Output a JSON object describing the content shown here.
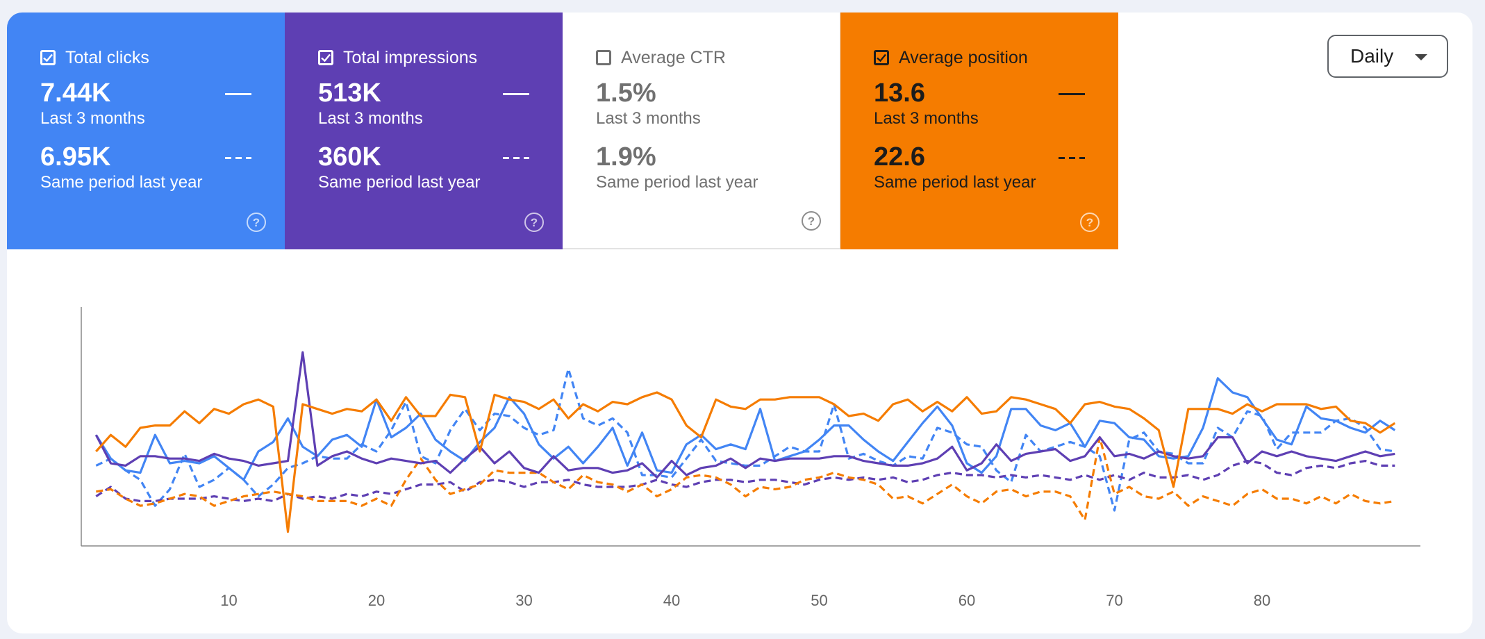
{
  "cards": [
    {
      "key": "clicks",
      "title": "Total clicks",
      "checked": true,
      "value": "7.44K",
      "period": "Last 3 months",
      "compare_value": "6.95K",
      "compare_period": "Same period last year"
    },
    {
      "key": "impressions",
      "title": "Total impressions",
      "checked": true,
      "value": "513K",
      "period": "Last 3 months",
      "compare_value": "360K",
      "compare_period": "Same period last year"
    },
    {
      "key": "ctr",
      "title": "Average CTR",
      "checked": false,
      "value": "1.5%",
      "period": "Last 3 months",
      "compare_value": "1.9%",
      "compare_period": "Same period last year"
    },
    {
      "key": "position",
      "title": "Average position",
      "checked": true,
      "value": "13.6",
      "period": "Last 3 months",
      "compare_value": "22.6",
      "compare_period": "Same period last year"
    }
  ],
  "colors": {
    "clicks": "#4285f4",
    "impressions": "#5e3fb3",
    "ctr": "#ffffff",
    "position": "#f57c00"
  },
  "dropdown": {
    "label": "Daily",
    "options_visible": [
      "Daily"
    ]
  },
  "chart_data": {
    "type": "line",
    "x_ticks": [
      10,
      20,
      30,
      40,
      50,
      60,
      70,
      80
    ],
    "xlim": [
      0,
      89
    ],
    "ylim": [
      0,
      100
    ],
    "grid": false,
    "series": [
      {
        "key": "clicks_current",
        "style": "solid",
        "color": "#4285f4",
        "values": [
          47,
          37,
          32,
          31,
          47,
          35,
          36,
          35,
          38,
          33,
          28,
          40,
          44,
          54,
          42,
          38,
          45,
          47,
          42,
          62,
          46,
          50,
          56,
          45,
          40,
          36,
          44,
          50,
          63,
          56,
          43,
          37,
          42,
          35,
          42,
          50,
          34,
          48,
          32,
          31,
          43,
          47,
          41,
          43,
          41,
          58,
          36,
          38,
          40,
          45,
          51,
          51,
          45,
          40,
          36,
          44,
          52,
          59,
          51,
          35,
          31,
          38,
          58,
          58,
          51,
          49,
          52,
          42,
          53,
          52,
          46,
          45,
          38,
          37,
          38,
          50,
          71,
          65,
          63,
          54,
          45,
          43,
          59,
          54,
          53,
          50,
          48,
          53,
          49
        ]
      },
      {
        "key": "clicks_previous",
        "style": "dashed",
        "color": "#4285f4",
        "values": [
          34,
          37,
          32,
          28,
          17,
          24,
          39,
          25,
          28,
          33,
          28,
          21,
          26,
          33,
          35,
          38,
          37,
          37,
          43,
          40,
          49,
          61,
          38,
          35,
          49,
          58,
          49,
          56,
          55,
          50,
          47,
          49,
          75,
          54,
          51,
          54,
          48,
          30,
          30,
          29,
          37,
          45,
          36,
          35,
          34,
          34,
          38,
          42,
          40,
          40,
          60,
          37,
          39,
          36,
          34,
          38,
          37,
          50,
          48,
          43,
          42,
          32,
          27,
          47,
          40,
          42,
          44,
          42,
          38,
          15,
          45,
          48,
          40,
          39,
          35,
          35,
          50,
          46,
          57,
          55,
          41,
          48,
          48,
          48,
          53,
          54,
          50,
          41,
          40
        ]
      },
      {
        "key": "impr_current",
        "style": "solid",
        "color": "#5e3fb3",
        "values": [
          47,
          35,
          34,
          38,
          38,
          37,
          37,
          36,
          39,
          37,
          36,
          34,
          35,
          36,
          82,
          34,
          38,
          40,
          37,
          35,
          37,
          36,
          35,
          36,
          31,
          37,
          42,
          35,
          40,
          33,
          31,
          38,
          32,
          33,
          33,
          31,
          32,
          35,
          29,
          36,
          30,
          33,
          34,
          37,
          33,
          37,
          36,
          37,
          37,
          37,
          38,
          38,
          36,
          35,
          34,
          34,
          35,
          37,
          42,
          32,
          35,
          43,
          36,
          39,
          40,
          41,
          36,
          38,
          46,
          38,
          39,
          37,
          40,
          38,
          37,
          38,
          46,
          46,
          35,
          40,
          38,
          40,
          38,
          37,
          36,
          38,
          40,
          38,
          39
        ]
      },
      {
        "key": "impr_previous",
        "style": "dashed",
        "color": "#5e3fb3",
        "values": [
          21,
          25,
          20,
          19,
          19,
          20,
          20,
          20,
          21,
          20,
          19,
          20,
          19,
          22,
          20,
          21,
          20,
          22,
          21,
          23,
          22,
          24,
          26,
          26,
          27,
          23,
          27,
          28,
          27,
          25,
          27,
          27,
          28,
          26,
          25,
          25,
          25,
          26,
          28,
          26,
          25,
          27,
          28,
          28,
          27,
          28,
          28,
          27,
          26,
          28,
          29,
          28,
          29,
          28,
          29,
          27,
          28,
          30,
          31,
          30,
          30,
          29,
          30,
          29,
          30,
          29,
          28,
          30,
          28,
          30,
          28,
          31,
          29,
          29,
          30,
          28,
          30,
          34,
          36,
          35,
          31,
          30,
          33,
          34,
          33,
          35,
          36,
          34,
          34
        ]
      },
      {
        "key": "pos_current",
        "style": "solid",
        "color": "#f57c00",
        "values": [
          40,
          47,
          42,
          50,
          51,
          51,
          57,
          52,
          58,
          56,
          60,
          62,
          59,
          6,
          60,
          58,
          56,
          58,
          57,
          62,
          53,
          63,
          55,
          55,
          64,
          63,
          40,
          64,
          62,
          61,
          58,
          62,
          54,
          60,
          57,
          61,
          60,
          63,
          65,
          62,
          51,
          46,
          62,
          59,
          58,
          62,
          62,
          63,
          63,
          63,
          60,
          55,
          56,
          53,
          60,
          62,
          57,
          61,
          57,
          63,
          56,
          57,
          63,
          62,
          60,
          58,
          52,
          60,
          61,
          59,
          58,
          54,
          49,
          25,
          58,
          58,
          58,
          56,
          60,
          57,
          60,
          60,
          60,
          58,
          59,
          53,
          52,
          48,
          52
        ]
      },
      {
        "key": "pos_previous",
        "style": "dashed",
        "color": "#f57c00",
        "values": [
          23,
          24,
          20,
          17,
          18,
          20,
          22,
          21,
          17,
          19,
          21,
          22,
          23,
          22,
          21,
          19,
          19,
          19,
          17,
          20,
          17,
          28,
          37,
          28,
          22,
          24,
          26,
          32,
          31,
          31,
          31,
          27,
          24,
          30,
          27,
          26,
          23,
          26,
          21,
          24,
          29,
          30,
          29,
          26,
          21,
          25,
          24,
          25,
          28,
          29,
          31,
          29,
          28,
          26,
          20,
          21,
          18,
          22,
          26,
          21,
          18,
          23,
          24,
          21,
          23,
          23,
          21,
          11,
          46,
          22,
          25,
          21,
          20,
          23,
          17,
          21,
          19,
          17,
          22,
          24,
          20,
          20,
          18,
          21,
          18,
          22,
          19,
          18,
          19
        ]
      }
    ]
  }
}
